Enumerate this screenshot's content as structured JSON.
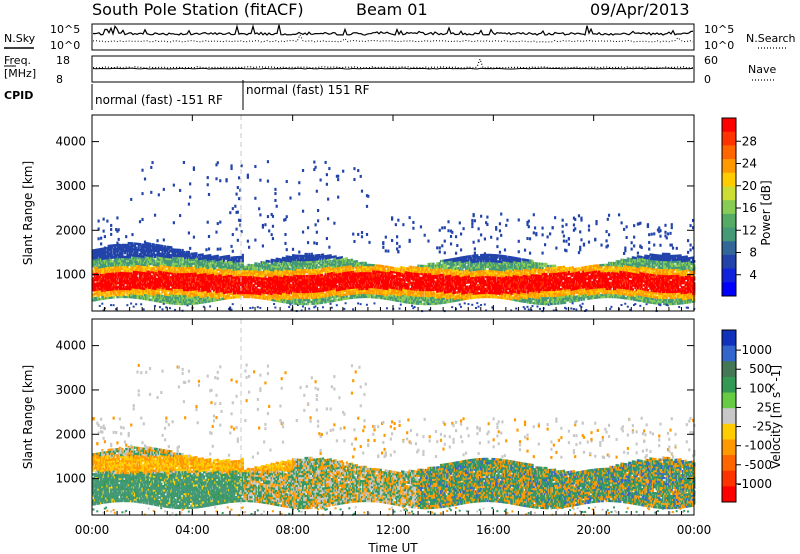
{
  "header": {
    "station": "South Pole Station (fitACF)",
    "beam": "Beam 01",
    "date": "09/Apr/2013"
  },
  "noise_panel": {
    "left_label": "N.Sky",
    "right_label": "N.Search",
    "left_ticks": [
      "10^5",
      "10^0"
    ],
    "right_ticks": [
      "10^5",
      "10^0"
    ]
  },
  "freq_panel": {
    "left_label_1": "Freq.",
    "left_label_2": "[MHz]",
    "right_label": "Nave",
    "left_ticks": [
      "18",
      "8"
    ],
    "right_ticks": [
      "60",
      "0"
    ]
  },
  "cpid_panel": {
    "label": "CPID",
    "segments": [
      {
        "label": "normal (fast) -151 RF",
        "start_hour": 0,
        "end_hour": 6
      },
      {
        "label": "normal (fast) 151 RF",
        "start_hour": 6,
        "end_hour": 24
      }
    ]
  },
  "chart_data": [
    {
      "type": "heatmap",
      "title": "",
      "xlabel": "",
      "ylabel": "Slant Range [km]",
      "xlim": [
        0,
        24
      ],
      "ylim": [
        180,
        4600
      ],
      "x_ticks": [
        "00:00",
        "04:00",
        "08:00",
        "12:00",
        "16:00",
        "20:00",
        "00:00"
      ],
      "y_ticks": [
        "1000",
        "2000",
        "3000",
        "4000"
      ],
      "colorbar": {
        "label": "Power [dB]",
        "ticks": [
          "28",
          "24",
          "20",
          "16",
          "12",
          "8",
          "4"
        ],
        "colors": [
          "#ff0000",
          "#ff3300",
          "#ff6600",
          "#ff9900",
          "#ffcc00",
          "#ccdd33",
          "#88cc55",
          "#55aa66",
          "#449977",
          "#336699",
          "#2244aa",
          "#1122dd",
          "#0000ff"
        ]
      }
    },
    {
      "type": "heatmap",
      "title": "",
      "xlabel": "Time UT",
      "ylabel": "Slant Range [km]",
      "xlim": [
        0,
        24
      ],
      "ylim": [
        180,
        4600
      ],
      "x_ticks": [
        "00:00",
        "04:00",
        "08:00",
        "12:00",
        "16:00",
        "20:00",
        "00:00"
      ],
      "y_ticks": [
        "1000",
        "2000",
        "3000",
        "4000"
      ],
      "colorbar": {
        "label": "Velocity [m s^-1]",
        "ticks": [
          "1000",
          "500",
          "100",
          "25",
          "-25",
          "-100",
          "-500",
          "-1000"
        ],
        "colors": [
          "#1133bb",
          "#3366cc",
          "#447755",
          "#339955",
          "#66cc44",
          "#c8c8c8",
          "#ffcc00",
          "#ff9900",
          "#ff6600",
          "#ff3300",
          "#ff0000"
        ]
      }
    }
  ],
  "colors": {
    "power_core": "#ff0000",
    "power_mid": "#ff9900",
    "power_low": "#449977",
    "power_faint": "#2244aa",
    "vel_pos": "#339966",
    "vel_neg": "#ff9900",
    "vel_zero": "#c8c8c8"
  }
}
